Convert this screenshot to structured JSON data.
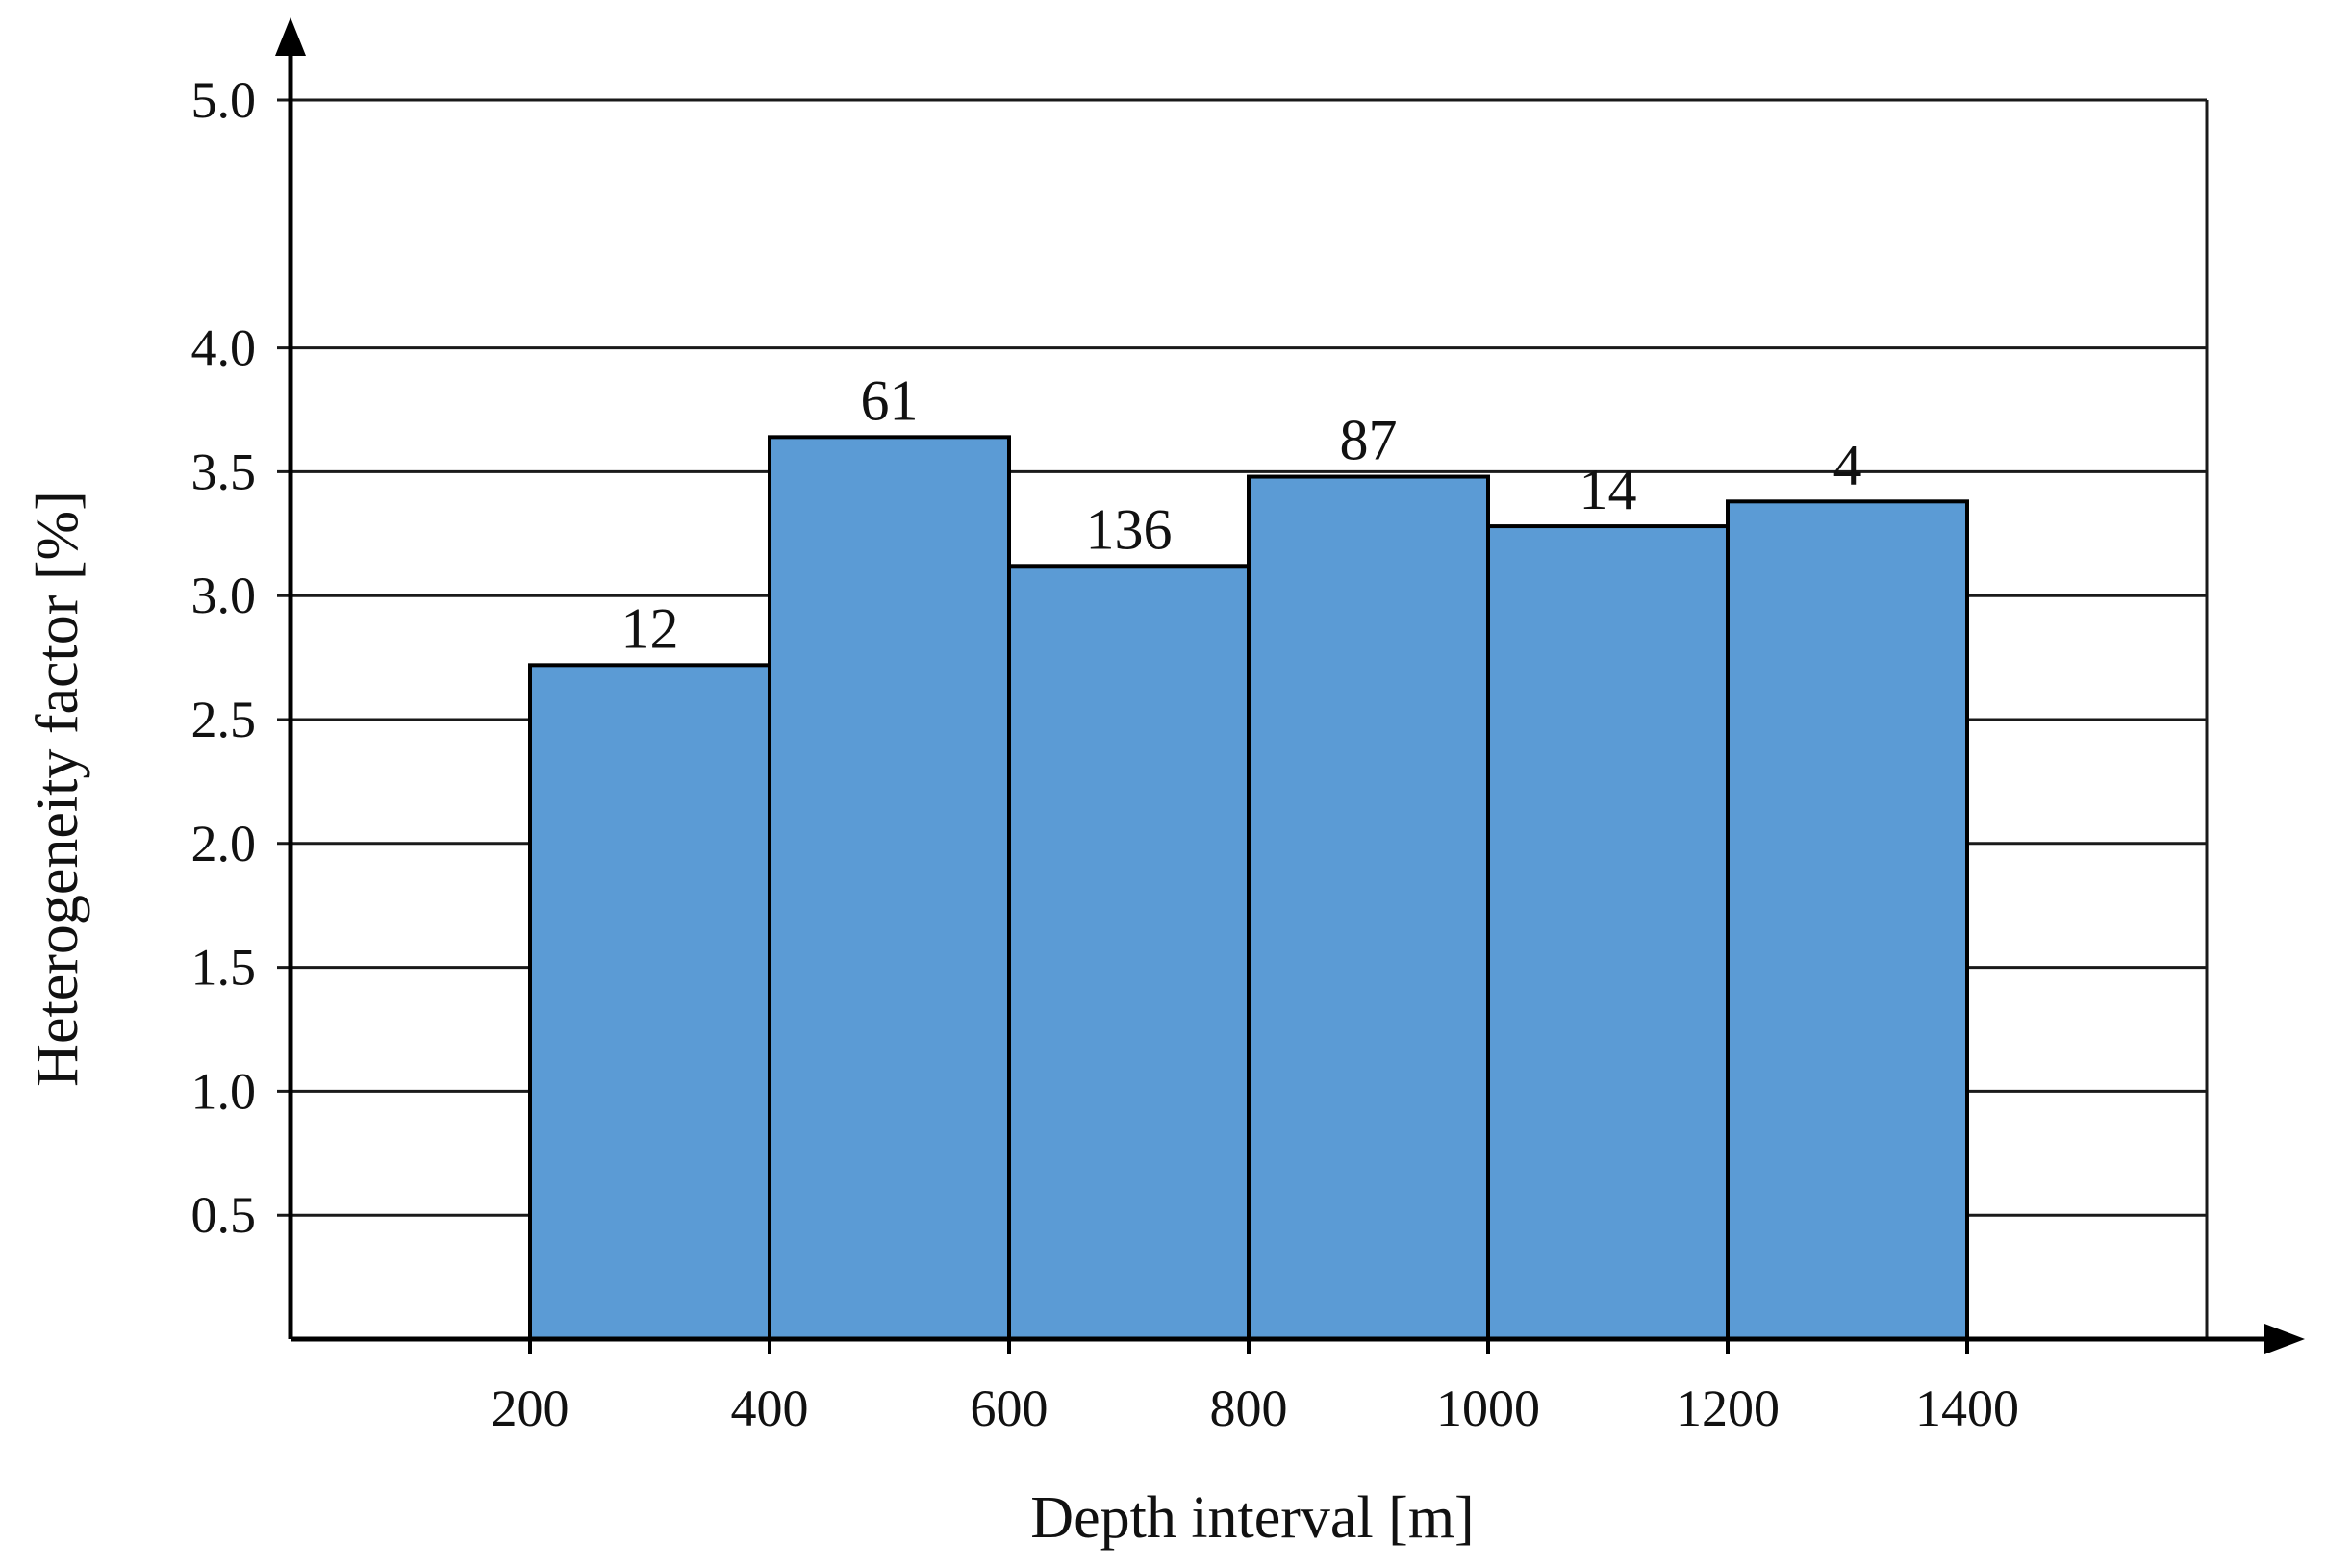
{
  "chart_data": {
    "type": "bar",
    "xlabel": "Depth interval [m]",
    "ylabel": "Heterogeneity factor [%]",
    "ylim": [
      0,
      5.0
    ],
    "xlim": [
      0,
      1600
    ],
    "yticks": [
      "0.5",
      "1.0",
      "1.5",
      "2.0",
      "2.5",
      "3.0",
      "3.5",
      "4.0",
      "5.0"
    ],
    "ytick_values": [
      0.5,
      1.0,
      1.5,
      2.0,
      2.5,
      3.0,
      3.5,
      4.0,
      5.0
    ],
    "xticks": [
      "200",
      "400",
      "600",
      "800",
      "1000",
      "1200",
      "1400"
    ],
    "xtick_values": [
      200,
      400,
      600,
      800,
      1000,
      1200,
      1400
    ],
    "bins": [
      {
        "x_start": 200,
        "x_end": 400,
        "value": 2.72,
        "label": "12"
      },
      {
        "x_start": 400,
        "x_end": 600,
        "value": 3.64,
        "label": "61"
      },
      {
        "x_start": 600,
        "x_end": 800,
        "value": 3.12,
        "label": "136"
      },
      {
        "x_start": 800,
        "x_end": 1000,
        "value": 3.48,
        "label": "87"
      },
      {
        "x_start": 1000,
        "x_end": 1200,
        "value": 3.28,
        "label": "14"
      },
      {
        "x_start": 1200,
        "x_end": 1400,
        "value": 3.38,
        "label": "4"
      }
    ],
    "grid": true,
    "bar_color": "#5b9bd5",
    "grid_color": "#1a1a1a"
  }
}
